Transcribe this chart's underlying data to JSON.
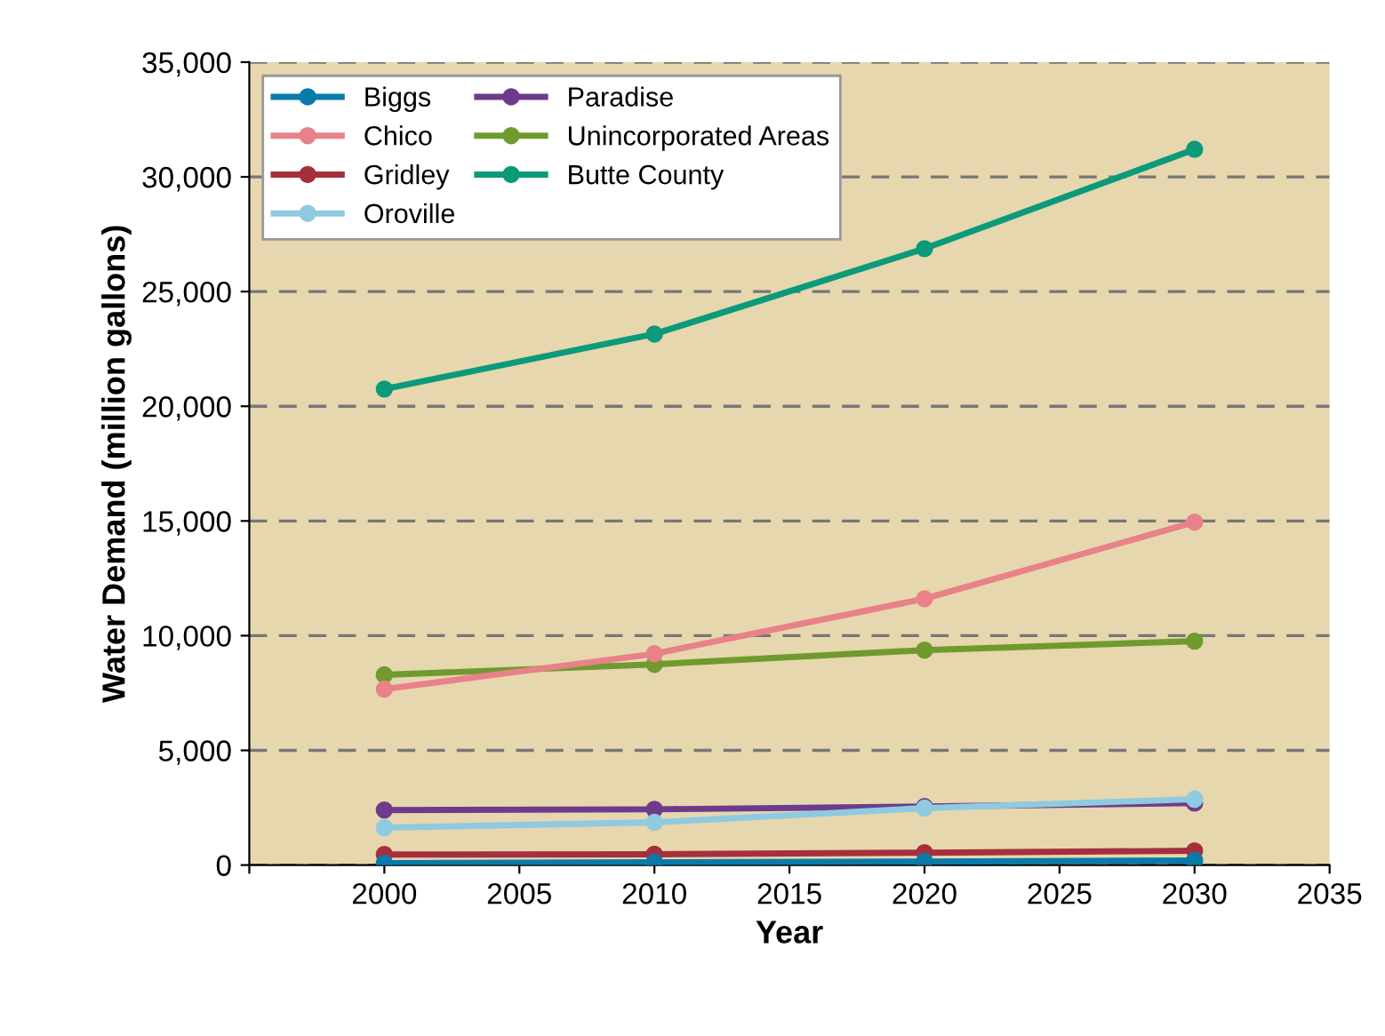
{
  "chart_data": {
    "type": "line",
    "xlabel": "Year",
    "ylabel": "Water Demand (million gallons)",
    "x": [
      2000,
      2010,
      2020,
      2030
    ],
    "series": [
      {
        "name": "Biggs",
        "color": "#0a7aab",
        "values": [
          80,
          120,
          150,
          200
        ]
      },
      {
        "name": "Chico",
        "color": "#e8818a",
        "values": [
          7670,
          9210,
          11610,
          14950
        ]
      },
      {
        "name": "Gridley",
        "color": "#a5303d",
        "values": [
          460,
          470,
          540,
          620
        ]
      },
      {
        "name": "Oroville",
        "color": "#8ecae0",
        "values": [
          1630,
          1860,
          2480,
          2870
        ]
      },
      {
        "name": "Paradise",
        "color": "#6e3b8c",
        "values": [
          2400,
          2430,
          2550,
          2700
        ]
      },
      {
        "name": "Unincorporated Areas",
        "color": "#6f9a2f",
        "values": [
          8290,
          8750,
          9370,
          9760
        ]
      },
      {
        "name": "Butte County",
        "color": "#0b9a7a",
        "values": [
          20750,
          23150,
          26870,
          31200
        ]
      }
    ],
    "xlim": [
      1995,
      2035
    ],
    "xticks": [
      {
        "value": 1995,
        "label": null
      },
      2000,
      2005,
      2010,
      2015,
      2020,
      2025,
      2030,
      2035
    ],
    "ylim": [
      0,
      35000
    ],
    "yticks": [
      {
        "value": 0,
        "label": "0"
      },
      {
        "value": 5000,
        "label": "5,000"
      },
      {
        "value": 10000,
        "label": "10,000"
      },
      {
        "value": 15000,
        "label": "15,000"
      },
      {
        "value": 20000,
        "label": "20,000"
      },
      {
        "value": 25000,
        "label": "25,000"
      },
      {
        "value": 30000,
        "label": "30,000"
      },
      {
        "value": 35000,
        "label": "35,000"
      }
    ],
    "grid": "y",
    "legend": "top left",
    "marker": "circle",
    "line_style": "solid"
  }
}
